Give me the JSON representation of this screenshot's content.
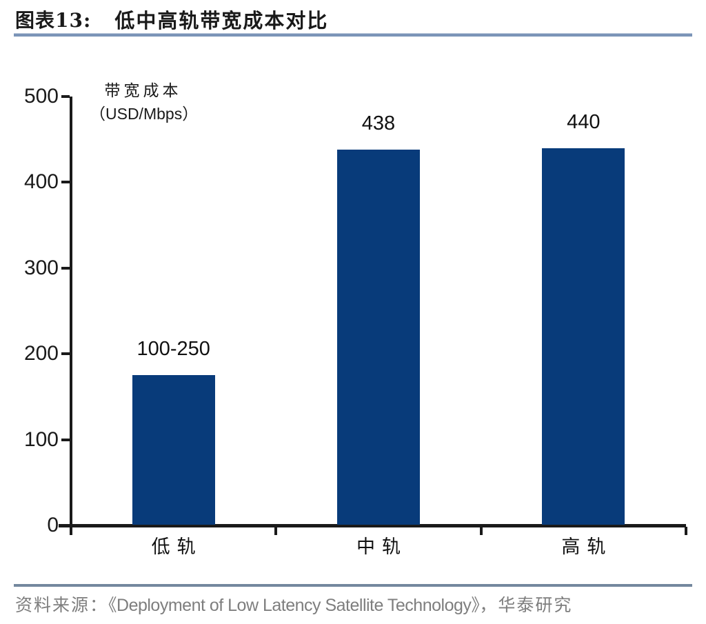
{
  "header": {
    "figure_label": "图表13:",
    "title": "低中高轨带宽成本对比"
  },
  "chart_data": {
    "type": "bar",
    "title": "低中高轨带宽成本对比",
    "categories": [
      "低轨",
      "中轨",
      "高轨"
    ],
    "values": [
      175,
      438,
      440
    ],
    "value_labels": [
      "100-250",
      "438",
      "440"
    ],
    "ylabel_line1": "带宽成本",
    "ylabel_line2": "（USD/Mbps）",
    "ylim": [
      0,
      500
    ],
    "yticks": [
      500,
      400,
      300,
      200,
      100,
      0
    ],
    "grid": false,
    "legend_position": "none",
    "bar_color": "#083b7a"
  },
  "footer": {
    "source_prefix": "资料来源：",
    "source_text": "《Deployment of Low Latency Satellite Technology》",
    "source_suffix": "，华泰研究"
  },
  "colors": {
    "bar": "#083b7a",
    "title_underline": "#7b94b8",
    "footer_line": "#74889e",
    "axis": "#1a1a1a",
    "footer_text": "#7e7e7e"
  }
}
